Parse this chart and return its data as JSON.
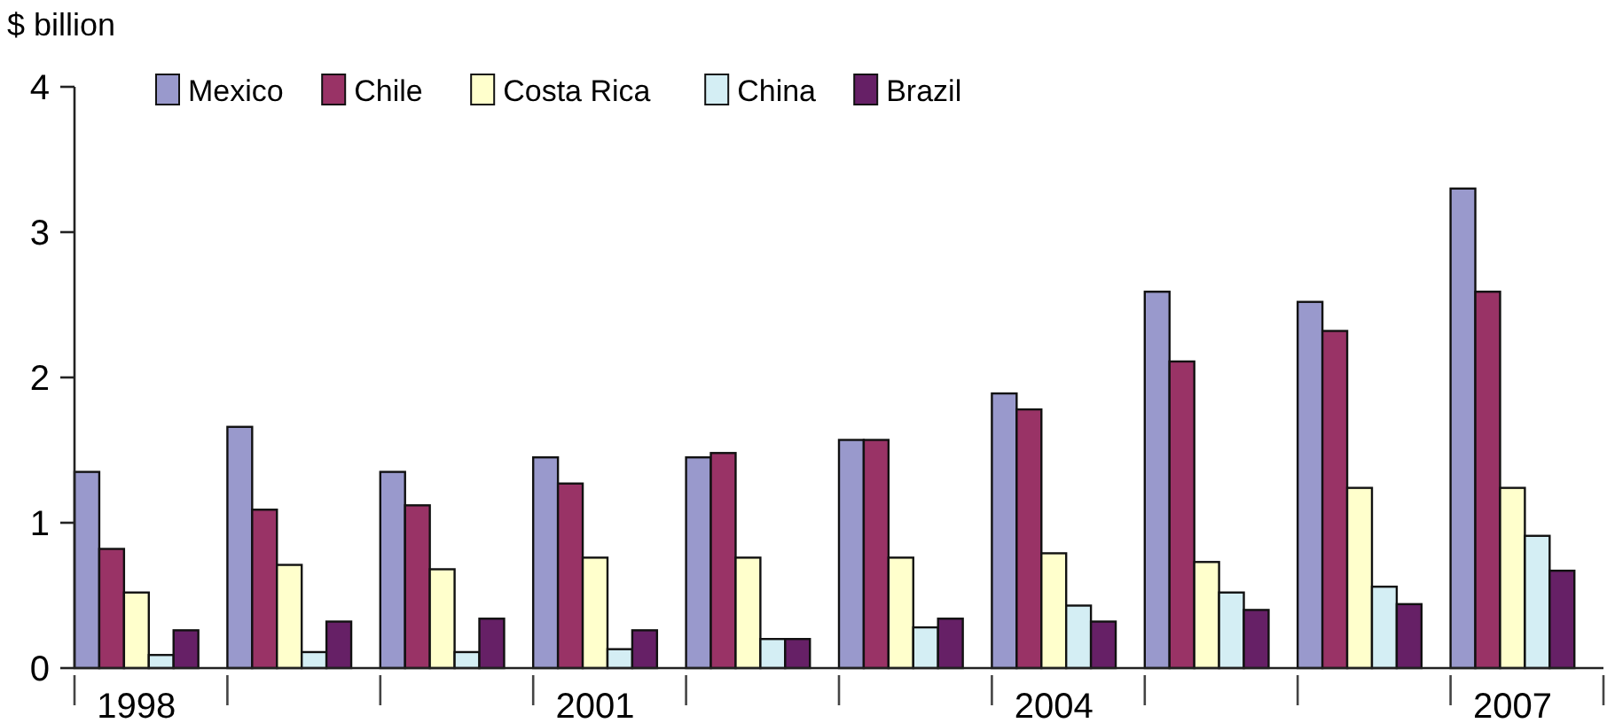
{
  "chart_data": {
    "type": "bar",
    "ylabel": "$ billion",
    "categories": [
      "1998",
      null,
      null,
      "2001",
      null,
      null,
      "2004",
      null,
      null,
      "2007"
    ],
    "series": [
      {
        "name": "Mexico",
        "color": "#9999cc",
        "values": [
          1.35,
          1.66,
          1.35,
          1.45,
          1.45,
          1.57,
          1.89,
          2.59,
          2.52,
          3.3
        ]
      },
      {
        "name": "Chile",
        "color": "#993366",
        "values": [
          0.82,
          1.09,
          1.12,
          1.27,
          1.48,
          1.57,
          1.78,
          2.11,
          2.32,
          2.59
        ]
      },
      {
        "name": "Costa Rica",
        "color": "#ffffcc",
        "values": [
          0.52,
          0.71,
          0.68,
          0.76,
          0.76,
          0.76,
          0.79,
          0.73,
          1.24,
          1.24
        ]
      },
      {
        "name": "China",
        "color": "#d4eef4",
        "values": [
          0.09,
          0.11,
          0.11,
          0.13,
          0.2,
          0.28,
          0.43,
          0.52,
          0.56,
          0.91
        ]
      },
      {
        "name": "Brazil",
        "color": "#662066",
        "values": [
          0.26,
          0.32,
          0.34,
          0.26,
          0.2,
          0.34,
          0.32,
          0.4,
          0.44,
          0.67
        ]
      }
    ],
    "ylim": [
      0,
      4
    ],
    "yticks": [
      0,
      1,
      2,
      3,
      4
    ],
    "grid": false,
    "legend": "top"
  }
}
